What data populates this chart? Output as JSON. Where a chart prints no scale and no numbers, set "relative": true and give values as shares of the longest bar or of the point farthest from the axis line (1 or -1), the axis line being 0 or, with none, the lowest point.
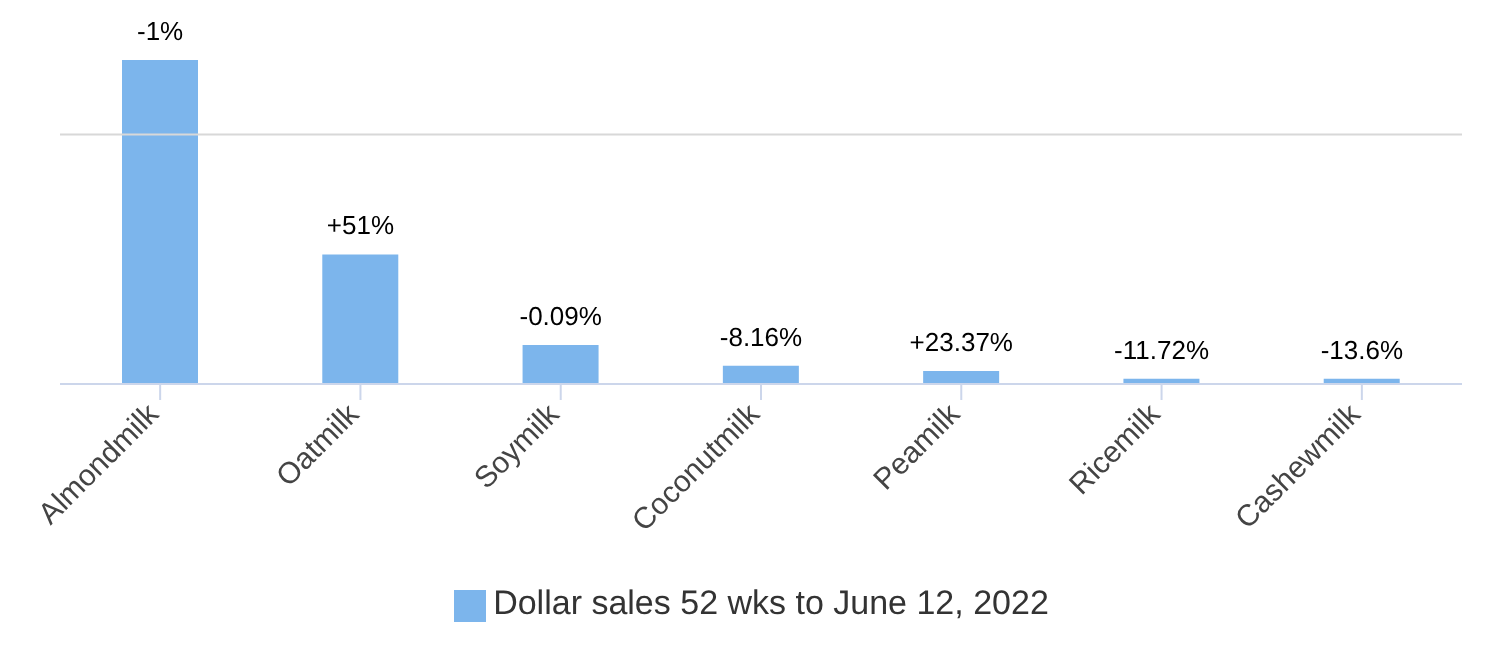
{
  "chart_data": {
    "type": "bar",
    "relative": true,
    "categories": [
      "Almondmilk",
      "Oatmilk",
      "Soymilk",
      "Coconutmilk",
      "Peamilk",
      "Ricemilk",
      "Cashewmilk"
    ],
    "series": [
      {
        "name": "Dollar sales 52 wks to June 12, 2022",
        "color": "#7cb5ec",
        "values": [
          1,
          0.4,
          0.12,
          0.056,
          0.04,
          0.016,
          0.016
        ]
      }
    ],
    "annotations": [
      {
        "text": "-1%",
        "x": "Almondmilk",
        "y": 1
      },
      {
        "text": "+51%",
        "x": "Oatmilk",
        "y": 0.4
      },
      {
        "text": "-0.09%",
        "x": "Soymilk",
        "y": 0.12
      },
      {
        "text": "-8.16%",
        "x": "Coconutmilk",
        "y": 0.056
      },
      {
        "text": "+23.37%",
        "x": "Peamilk",
        "y": 0.04
      },
      {
        "text": "-11.72%",
        "x": "Ricemilk",
        "y": 0.016
      },
      {
        "text": "-13.6%",
        "x": "Cashewmilk",
        "y": 0.016
      }
    ],
    "ref_lines": [
      {
        "axis": "y",
        "value": 0.77,
        "color": "#d8d8d8"
      }
    ],
    "legend": "bottom"
  }
}
